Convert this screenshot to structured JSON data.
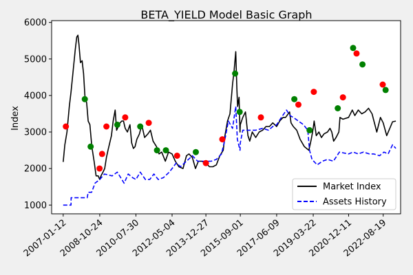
{
  "chart_data": {
    "type": "line",
    "title": "BETA_YIELD Model Basic Graph",
    "xlabel": "",
    "ylabel": "Index",
    "x_ticks": [
      "2007-01-12",
      "2008-10-24",
      "2010-07-30",
      "2012-05-04",
      "2013-12-27",
      "2015-09-01",
      "2017-06-09",
      "2019-03-22",
      "2020-12-11",
      "2022-08-19"
    ],
    "xlim": [
      "2006-06-20",
      "2023-06-25"
    ],
    "ylim": [
      760,
      6050
    ],
    "y_ticks": [
      1000,
      2000,
      3000,
      4000,
      5000,
      6000
    ],
    "grid": false,
    "legend_position": "lower-right",
    "colors": {
      "market": "#000000",
      "assets": "#0000ff",
      "buy": "#008000",
      "sell": "#ff0000"
    },
    "series": [
      {
        "name": "Market Index",
        "style": "solid",
        "points": [
          [
            "2007-01-12",
            2180
          ],
          [
            "2007-02-10",
            2650
          ],
          [
            "2007-03-20",
            3000
          ],
          [
            "2007-05-01",
            3700
          ],
          [
            "2007-06-01",
            4100
          ],
          [
            "2007-07-10",
            4700
          ],
          [
            "2007-08-15",
            5250
          ],
          [
            "2007-09-10",
            5600
          ],
          [
            "2007-10-01",
            5650
          ],
          [
            "2007-10-20",
            5400
          ],
          [
            "2007-11-15",
            4900
          ],
          [
            "2007-12-15",
            4950
          ],
          [
            "2008-01-10",
            4600
          ],
          [
            "2008-02-05",
            3950
          ],
          [
            "2008-03-05",
            3800
          ],
          [
            "2008-04-01",
            3300
          ],
          [
            "2008-05-01",
            3200
          ],
          [
            "2008-06-05",
            2600
          ],
          [
            "2008-07-15",
            2200
          ],
          [
            "2008-08-20",
            1800
          ],
          [
            "2008-09-25",
            1800
          ],
          [
            "2008-10-24",
            1700
          ],
          [
            "2008-11-15",
            1800
          ],
          [
            "2008-12-20",
            1900
          ],
          [
            "2009-01-20",
            2000
          ],
          [
            "2009-02-20",
            2300
          ],
          [
            "2009-03-20",
            2500
          ],
          [
            "2009-04-20",
            2700
          ],
          [
            "2009-05-20",
            2900
          ],
          [
            "2009-06-20",
            3300
          ],
          [
            "2009-07-25",
            3600
          ],
          [
            "2009-08-20",
            3050
          ],
          [
            "2009-09-20",
            3150
          ],
          [
            "2009-10-20",
            3250
          ],
          [
            "2009-11-20",
            3300
          ],
          [
            "2009-12-20",
            3300
          ],
          [
            "2010-01-20",
            3100
          ],
          [
            "2010-03-01",
            3000
          ],
          [
            "2010-04-15",
            3200
          ],
          [
            "2010-05-15",
            2700
          ],
          [
            "2010-06-15",
            2550
          ],
          [
            "2010-07-15",
            2600
          ],
          [
            "2010-08-15",
            2800
          ],
          [
            "2010-10-01",
            2950
          ],
          [
            "2010-11-10",
            3200
          ],
          [
            "2011-01-01",
            2850
          ],
          [
            "2011-03-01",
            2950
          ],
          [
            "2011-04-15",
            3050
          ],
          [
            "2011-06-01",
            2750
          ],
          [
            "2011-08-01",
            2600
          ],
          [
            "2011-09-15",
            2400
          ],
          [
            "2011-11-01",
            2450
          ],
          [
            "2012-01-05",
            2200
          ],
          [
            "2012-03-01",
            2450
          ],
          [
            "2012-05-04",
            2400
          ],
          [
            "2012-07-01",
            2200
          ],
          [
            "2012-09-01",
            2050
          ],
          [
            "2012-11-15",
            2000
          ],
          [
            "2013-01-15",
            2350
          ],
          [
            "2013-03-01",
            2400
          ],
          [
            "2013-05-01",
            2300
          ],
          [
            "2013-06-25",
            2000
          ],
          [
            "2013-08-15",
            2200
          ],
          [
            "2013-10-15",
            2200
          ],
          [
            "2013-12-27",
            2150
          ],
          [
            "2014-03-01",
            2050
          ],
          [
            "2014-05-01",
            2050
          ],
          [
            "2014-07-01",
            2100
          ],
          [
            "2014-09-01",
            2350
          ],
          [
            "2014-11-01",
            2500
          ],
          [
            "2014-12-01",
            2900
          ],
          [
            "2015-01-15",
            3300
          ],
          [
            "2015-03-01",
            3500
          ],
          [
            "2015-04-15",
            4300
          ],
          [
            "2015-05-15",
            4700
          ],
          [
            "2015-06-12",
            5200
          ],
          [
            "2015-07-01",
            4200
          ],
          [
            "2015-07-15",
            3700
          ],
          [
            "2015-08-10",
            3950
          ],
          [
            "2015-08-26",
            3000
          ],
          [
            "2015-09-01",
            3200
          ],
          [
            "2015-10-15",
            3400
          ],
          [
            "2015-12-01",
            3550
          ],
          [
            "2016-01-15",
            2900
          ],
          [
            "2016-02-15",
            2750
          ],
          [
            "2016-04-01",
            3000
          ],
          [
            "2016-06-01",
            2850
          ],
          [
            "2016-08-01",
            3000
          ],
          [
            "2016-10-01",
            3050
          ],
          [
            "2016-12-01",
            3150
          ],
          [
            "2017-02-01",
            3150
          ],
          [
            "2017-04-01",
            3250
          ],
          [
            "2017-06-09",
            3150
          ],
          [
            "2017-08-01",
            3300
          ],
          [
            "2017-10-01",
            3400
          ],
          [
            "2017-11-15",
            3400
          ],
          [
            "2018-01-25",
            3550
          ],
          [
            "2018-02-20",
            3250
          ],
          [
            "2018-04-01",
            3150
          ],
          [
            "2018-06-01",
            3050
          ],
          [
            "2018-08-01",
            2800
          ],
          [
            "2018-10-15",
            2600
          ],
          [
            "2019-01-03",
            2500
          ],
          [
            "2019-02-15",
            2800
          ],
          [
            "2019-03-22",
            3100
          ],
          [
            "2019-04-08",
            3300
          ],
          [
            "2019-05-15",
            2900
          ],
          [
            "2019-07-01",
            3000
          ],
          [
            "2019-08-15",
            2850
          ],
          [
            "2019-10-01",
            2950
          ],
          [
            "2019-12-01",
            3000
          ],
          [
            "2020-01-15",
            3100
          ],
          [
            "2020-02-15",
            3000
          ],
          [
            "2020-03-20",
            2750
          ],
          [
            "2020-05-01",
            2850
          ],
          [
            "2020-06-20",
            3000
          ],
          [
            "2020-07-10",
            3400
          ],
          [
            "2020-09-01",
            3350
          ],
          [
            "2020-12-11",
            3400
          ],
          [
            "2021-02-15",
            3600
          ],
          [
            "2021-04-01",
            3450
          ],
          [
            "2021-06-01",
            3600
          ],
          [
            "2021-08-01",
            3500
          ],
          [
            "2021-10-01",
            3550
          ],
          [
            "2021-12-01",
            3650
          ],
          [
            "2022-02-01",
            3500
          ],
          [
            "2022-04-27",
            3000
          ],
          [
            "2022-07-01",
            3400
          ],
          [
            "2022-08-19",
            3250
          ],
          [
            "2022-10-20",
            2900
          ],
          [
            "2022-12-15",
            3100
          ],
          [
            "2023-02-01",
            3280
          ],
          [
            "2023-04-01",
            3300
          ]
        ]
      },
      {
        "name": "Assets History",
        "style": "dashed",
        "points": [
          [
            "2007-01-12",
            1000
          ],
          [
            "2007-06-01",
            1000
          ],
          [
            "2007-06-02",
            1200
          ],
          [
            "2008-03-15",
            1200
          ],
          [
            "2008-04-01",
            1350
          ],
          [
            "2008-06-01",
            1350
          ],
          [
            "2008-08-01",
            1600
          ],
          [
            "2008-10-24",
            1700
          ],
          [
            "2009-01-15",
            1850
          ],
          [
            "2009-06-01",
            1800
          ],
          [
            "2009-09-01",
            1900
          ],
          [
            "2010-01-01",
            1600
          ],
          [
            "2010-03-15",
            1850
          ],
          [
            "2010-06-01",
            1750
          ],
          [
            "2010-07-30",
            1700
          ],
          [
            "2010-10-15",
            1900
          ],
          [
            "2011-01-15",
            1700
          ],
          [
            "2011-04-01",
            1700
          ],
          [
            "2011-06-15",
            1850
          ],
          [
            "2011-09-01",
            1700
          ],
          [
            "2011-12-01",
            1750
          ],
          [
            "2012-03-15",
            1900
          ],
          [
            "2012-05-04",
            2000
          ],
          [
            "2012-07-15",
            2150
          ],
          [
            "2012-10-01",
            2050
          ],
          [
            "2013-01-15",
            2200
          ],
          [
            "2013-05-01",
            2350
          ],
          [
            "2013-08-01",
            2200
          ],
          [
            "2013-12-27",
            2200
          ],
          [
            "2014-04-01",
            2200
          ],
          [
            "2014-07-01",
            2250
          ],
          [
            "2014-10-01",
            2400
          ],
          [
            "2014-12-01",
            2800
          ],
          [
            "2015-02-01",
            3300
          ],
          [
            "2015-04-15",
            3100
          ],
          [
            "2015-06-12",
            3700
          ],
          [
            "2015-07-10",
            2800
          ],
          [
            "2015-08-26",
            2500
          ],
          [
            "2015-09-01",
            2700
          ],
          [
            "2015-10-15",
            3050
          ],
          [
            "2016-01-15",
            3050
          ],
          [
            "2016-06-01",
            3050
          ],
          [
            "2016-10-01",
            3100
          ],
          [
            "2017-01-15",
            3050
          ],
          [
            "2017-04-01",
            3150
          ],
          [
            "2017-06-09",
            3200
          ],
          [
            "2017-09-01",
            3400
          ],
          [
            "2017-12-01",
            3600
          ],
          [
            "2018-02-01",
            3450
          ],
          [
            "2018-04-01",
            3400
          ],
          [
            "2018-07-01",
            3300
          ],
          [
            "2018-10-01",
            3200
          ],
          [
            "2018-12-15",
            3050
          ],
          [
            "2019-01-15",
            2500
          ],
          [
            "2019-03-01",
            2250
          ],
          [
            "2019-06-01",
            2100
          ],
          [
            "2019-09-01",
            2200
          ],
          [
            "2019-12-01",
            2250
          ],
          [
            "2020-03-15",
            2200
          ],
          [
            "2020-07-01",
            2450
          ],
          [
            "2020-12-11",
            2400
          ],
          [
            "2021-03-01",
            2450
          ],
          [
            "2021-06-01",
            2400
          ],
          [
            "2021-09-01",
            2450
          ],
          [
            "2021-12-15",
            2400
          ],
          [
            "2022-03-01",
            2400
          ],
          [
            "2022-06-15",
            2350
          ],
          [
            "2022-09-01",
            2450
          ],
          [
            "2022-11-15",
            2400
          ],
          [
            "2023-02-01",
            2650
          ],
          [
            "2023-04-01",
            2550
          ]
        ]
      }
    ],
    "buy_markers": [
      [
        "2008-02-01",
        3900
      ],
      [
        "2008-05-15",
        2600
      ],
      [
        "2009-09-01",
        3200
      ],
      [
        "2010-10-15",
        3150
      ],
      [
        "2011-08-10",
        2500
      ],
      [
        "2012-01-15",
        2500
      ],
      [
        "2013-07-01",
        2450
      ],
      [
        "2015-06-01",
        4600
      ],
      [
        "2015-08-20",
        3550
      ],
      [
        "2018-04-20",
        3900
      ],
      [
        "2019-01-15",
        3050
      ],
      [
        "2020-06-01",
        3650
      ],
      [
        "2021-03-01",
        5300
      ],
      [
        "2021-08-15",
        4850
      ],
      [
        "2022-10-01",
        4150
      ]
    ],
    "sell_markers": [
      [
        "2007-03-01",
        3150
      ],
      [
        "2008-10-20",
        2000
      ],
      [
        "2008-12-05",
        2400
      ],
      [
        "2009-02-20",
        3150
      ],
      [
        "2010-01-20",
        3400
      ],
      [
        "2011-03-15",
        3250
      ],
      [
        "2012-08-01",
        2350
      ],
      [
        "2013-12-27",
        2150
      ],
      [
        "2014-10-15",
        2800
      ],
      [
        "2016-09-01",
        3400
      ],
      [
        "2018-07-01",
        3750
      ],
      [
        "2019-04-01",
        4100
      ],
      [
        "2020-09-01",
        3950
      ],
      [
        "2021-05-01",
        5150
      ],
      [
        "2022-08-10",
        4300
      ]
    ]
  }
}
